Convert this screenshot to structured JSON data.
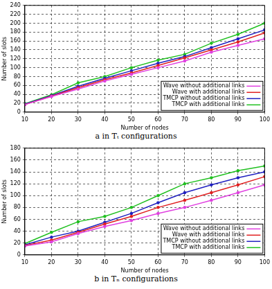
{
  "chart_data": [
    {
      "type": "line",
      "title": "a in Tₜ configurations",
      "x_label": "Number of nodes",
      "y_label": "Number of slots",
      "x": [
        10,
        20,
        30,
        40,
        50,
        60,
        70,
        80,
        90,
        100
      ],
      "series": [
        {
          "name": "Wave without additional links",
          "color": "#e040e0",
          "values": [
            17,
            35,
            52,
            70,
            85,
            100,
            115,
            135,
            150,
            165
          ]
        },
        {
          "name": "Wave with additional links",
          "color": "#e02020",
          "values": [
            17,
            36,
            55,
            73,
            88,
            105,
            122,
            140,
            158,
            178
          ]
        },
        {
          "name": "TMCP without additional links",
          "color": "#2020c0",
          "values": [
            18,
            37,
            58,
            76,
            93,
            110,
            125,
            145,
            165,
            185
          ]
        },
        {
          "name": "TMCP with additional links",
          "color": "#20c020",
          "values": [
            19,
            39,
            66,
            80,
            100,
            117,
            130,
            155,
            175,
            200
          ]
        }
      ],
      "xlim": [
        10,
        100
      ],
      "xticks": [
        10,
        20,
        30,
        40,
        50,
        60,
        70,
        80,
        90,
        100
      ],
      "ylim": [
        0,
        240
      ],
      "yticks": [
        0,
        20,
        40,
        60,
        80,
        100,
        120,
        140,
        160,
        180,
        200,
        220,
        240
      ],
      "grid": true,
      "legend": "lower right"
    },
    {
      "type": "line",
      "title": "b in Tₙ configurations",
      "x_label": "Number of nodes",
      "y_label": "Number of slots",
      "x": [
        10,
        20,
        30,
        40,
        50,
        60,
        70,
        80,
        90,
        100
      ],
      "series": [
        {
          "name": "Wave without additional links",
          "color": "#e040e0",
          "values": [
            15,
            22,
            36,
            48,
            58,
            70,
            80,
            92,
            105,
            118
          ]
        },
        {
          "name": "Wave with additional links",
          "color": "#e02020",
          "values": [
            16,
            25,
            38,
            52,
            65,
            80,
            92,
            105,
            118,
            132
          ]
        },
        {
          "name": "TMCP without additional links",
          "color": "#2020c0",
          "values": [
            17,
            30,
            40,
            55,
            70,
            88,
            105,
            118,
            130,
            140
          ]
        },
        {
          "name": "TMCP with additional links",
          "color": "#20c020",
          "values": [
            19,
            38,
            56,
            65,
            80,
            100,
            120,
            130,
            142,
            150
          ]
        }
      ],
      "xlim": [
        10,
        100
      ],
      "xticks": [
        10,
        20,
        30,
        40,
        50,
        60,
        70,
        80,
        90,
        100
      ],
      "ylim": [
        0,
        180
      ],
      "yticks": [
        0,
        20,
        40,
        60,
        80,
        100,
        120,
        140,
        160,
        180
      ],
      "grid": true,
      "legend": "lower right"
    }
  ]
}
